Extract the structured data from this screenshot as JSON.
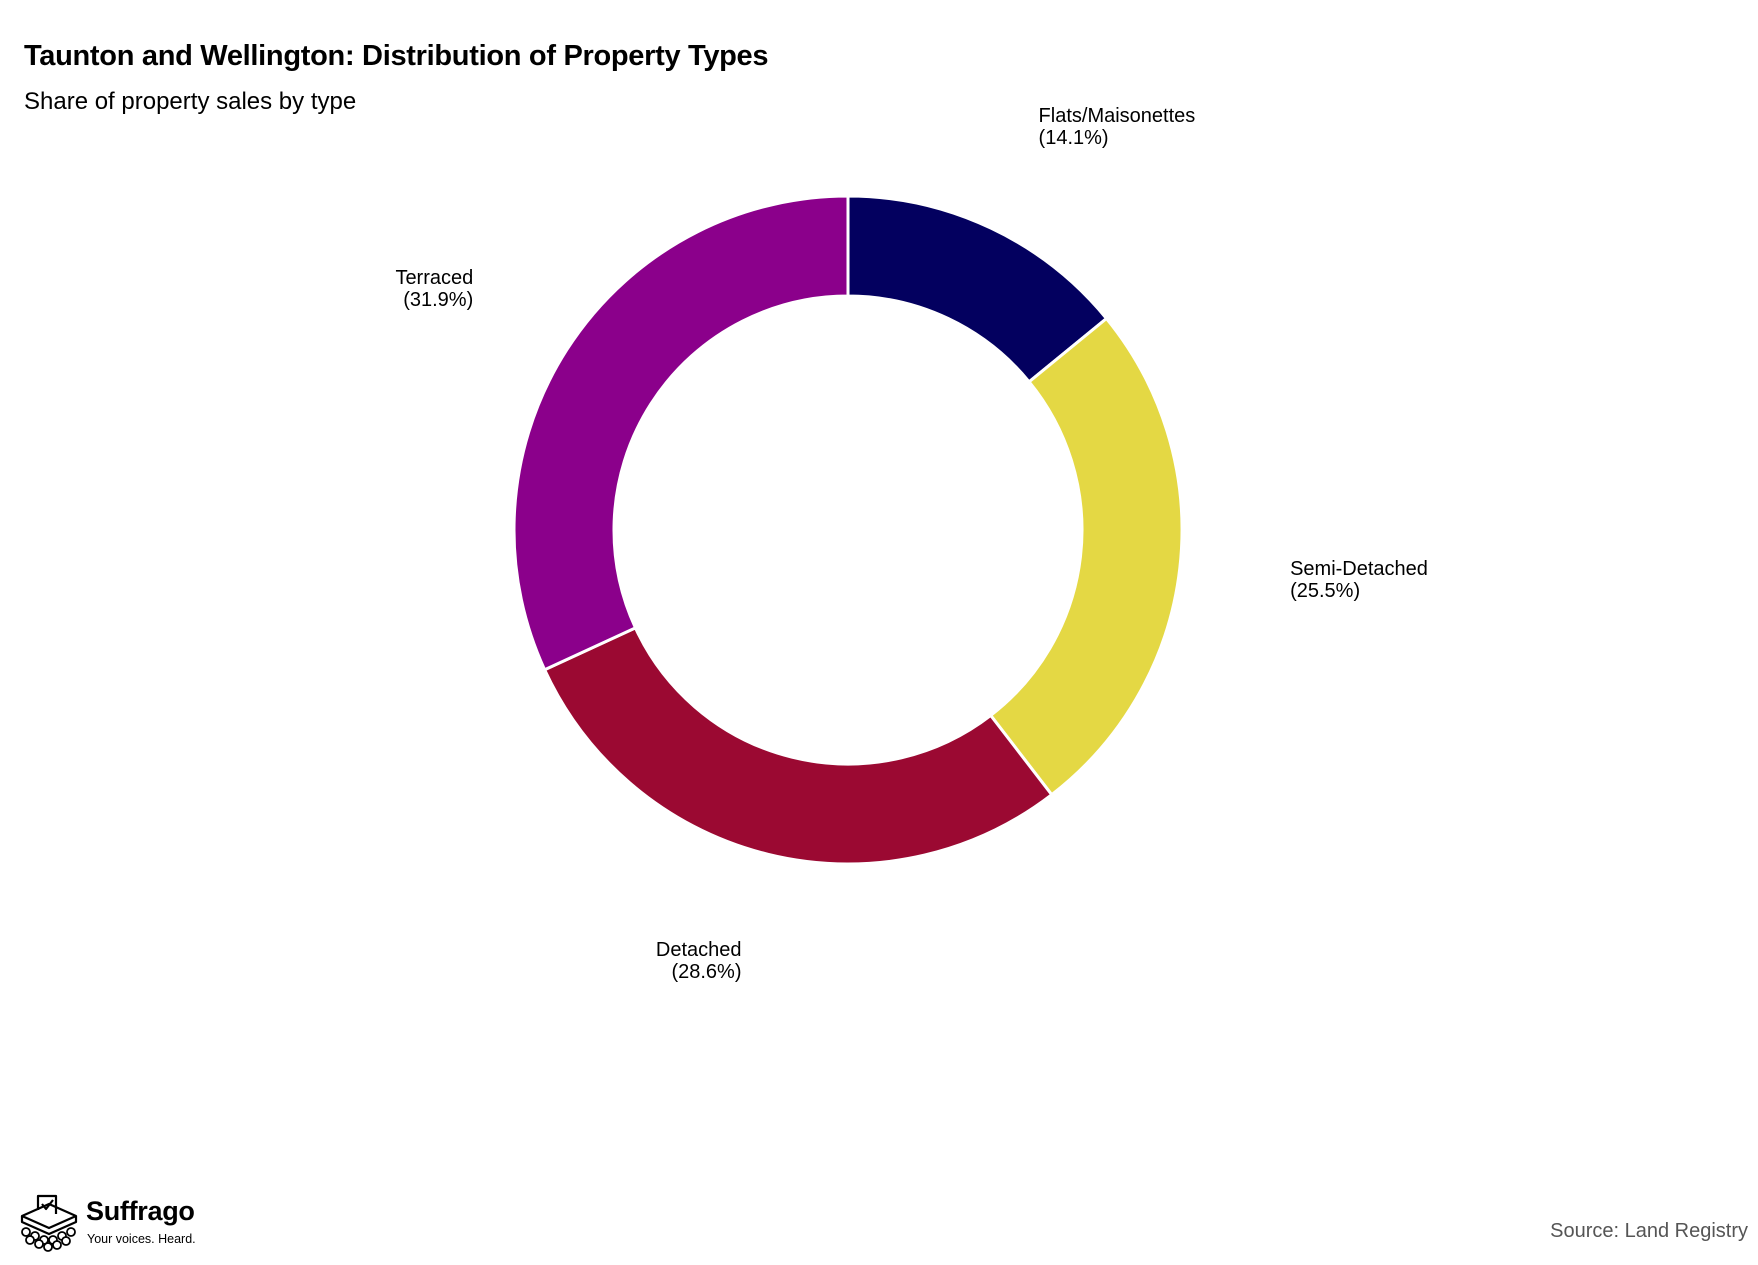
{
  "header": {
    "title": "Taunton and Wellington: Distribution of Property Types",
    "subtitle": "Share of property sales by type"
  },
  "chart_data": {
    "type": "pie",
    "style": "donut",
    "title": "Taunton and Wellington: Distribution of Property Types",
    "subtitle": "Share of property sales by type",
    "start_angle": "12 o'clock, clockwise",
    "legend": "none (direct labels)",
    "slices": [
      {
        "label": "Flats/Maisonettes",
        "value": 14.1,
        "value_label": "(14.1%)",
        "color": "#03005f"
      },
      {
        "label": "Semi-Detached",
        "value": 25.5,
        "value_label": "(25.5%)",
        "color": "#e4d844"
      },
      {
        "label": "Detached",
        "value": 28.6,
        "value_label": "(28.6%)",
        "color": "#9b0932"
      },
      {
        "label": "Terraced",
        "value": 31.9,
        "value_label": "(31.9%)",
        "color": "#8b008b"
      }
    ]
  },
  "brand": {
    "name": "Suffrago",
    "tagline": "Your voices. Heard.",
    "logo_icon": "ballot-box-icon"
  },
  "footer": {
    "source": "Source: Land Registry"
  }
}
